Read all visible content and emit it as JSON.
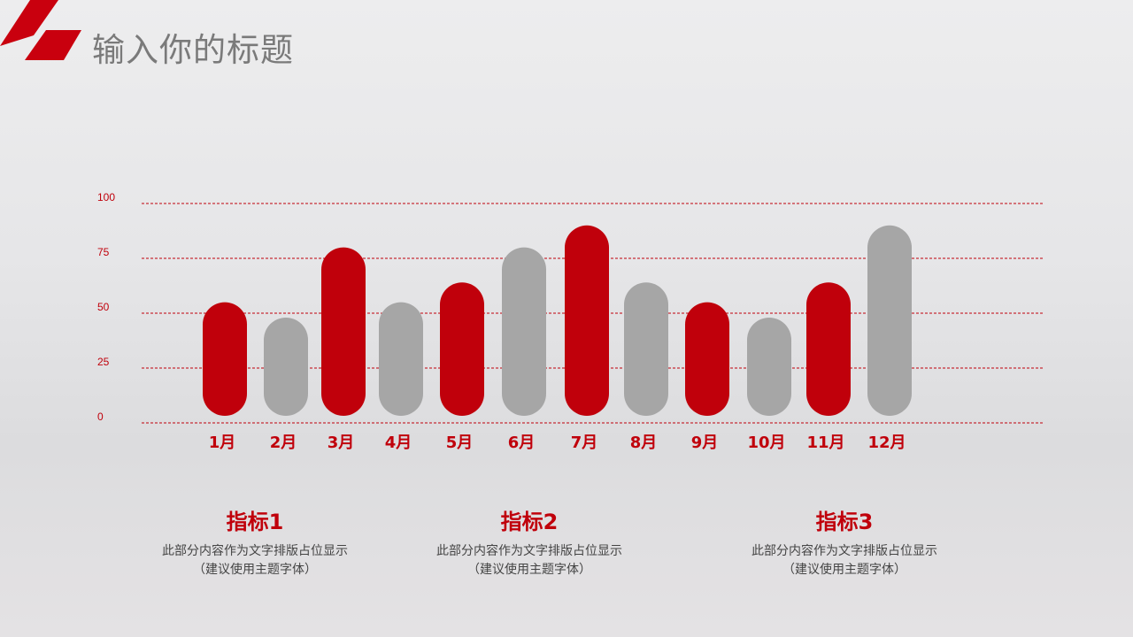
{
  "header": {
    "title": "输入你的标题"
  },
  "colors": {
    "red": "#c0000b",
    "gray": "#a6a6a6",
    "grid": "#c0000b"
  },
  "chart_data": {
    "type": "bar",
    "title": "",
    "xlabel": "",
    "ylabel": "",
    "ylim": [
      0,
      100
    ],
    "yticks": [
      "0",
      "25",
      "50",
      "75",
      "100"
    ],
    "grid": true,
    "categories": [
      "1月",
      "2月",
      "3月",
      "4月",
      "5月",
      "6月",
      "7月",
      "8月",
      "9月",
      "10月",
      "11月",
      "12月"
    ],
    "values": [
      55,
      48,
      80,
      55,
      64,
      80,
      90,
      64,
      55,
      48,
      64,
      90
    ],
    "bar_colors": [
      "red",
      "gray",
      "red",
      "gray",
      "red",
      "gray",
      "red",
      "gray",
      "red",
      "gray",
      "red",
      "gray"
    ]
  },
  "indicators": [
    {
      "title": "指标1",
      "line1": "此部分内容作为文字排版占位显示",
      "line2": "（建议使用主题字体）"
    },
    {
      "title": "指标2",
      "line1": "此部分内容作为文字排版占位显示",
      "line2": "（建议使用主题字体）"
    },
    {
      "title": "指标3",
      "line1": "此部分内容作为文字排版占位显示",
      "line2": "（建议使用主题字体）"
    }
  ]
}
